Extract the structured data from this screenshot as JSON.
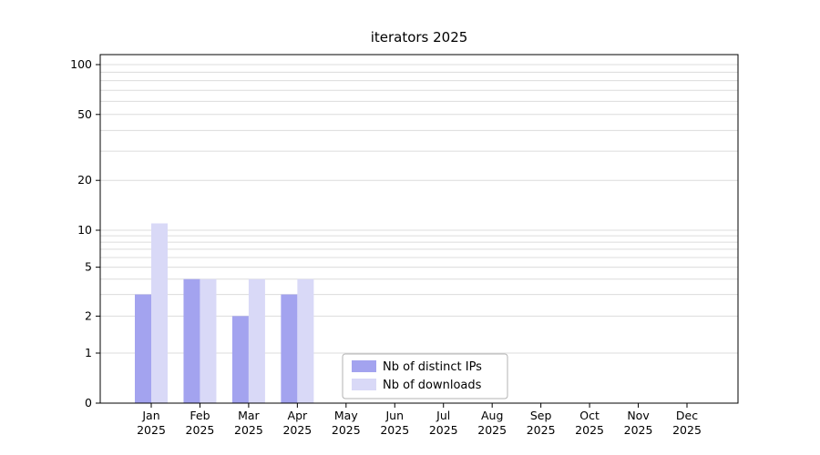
{
  "title": "iterators 2025",
  "chart_data": {
    "type": "bar",
    "title": "iterators 2025",
    "scale": "symlog",
    "ylim": [
      0,
      100
    ],
    "grid": true,
    "y_ticks": [
      0,
      1,
      2,
      5,
      10,
      20,
      50,
      100
    ],
    "minor_grid_values": [
      1,
      2,
      3,
      4,
      5,
      6,
      7,
      8,
      9,
      10,
      20,
      30,
      40,
      50,
      60,
      70,
      80,
      90,
      100
    ],
    "categories": [
      "Jan",
      "Feb",
      "Mar",
      "Apr",
      "May",
      "Jun",
      "Jul",
      "Aug",
      "Sep",
      "Oct",
      "Nov",
      "Dec"
    ],
    "year_label": "2025",
    "series": [
      {
        "name": "Nb of distinct IPs",
        "color": "#a3a3ef",
        "values": [
          3,
          4,
          2,
          3,
          0,
          0,
          0,
          0,
          0,
          0,
          0,
          0
        ]
      },
      {
        "name": "Nb of downloads",
        "color": "#d9d9f7",
        "values": [
          11,
          4,
          4,
          4,
          0,
          0,
          0,
          0,
          0,
          0,
          0,
          0
        ]
      }
    ],
    "legend": {
      "entries": [
        "Nb of distinct IPs",
        "Nb of downloads"
      ],
      "position": "lower-center"
    },
    "colors": {
      "grid": "#dcdcdc",
      "axis": "#000000",
      "legend_border": "#b3b3b3",
      "background": "#ffffff"
    }
  }
}
